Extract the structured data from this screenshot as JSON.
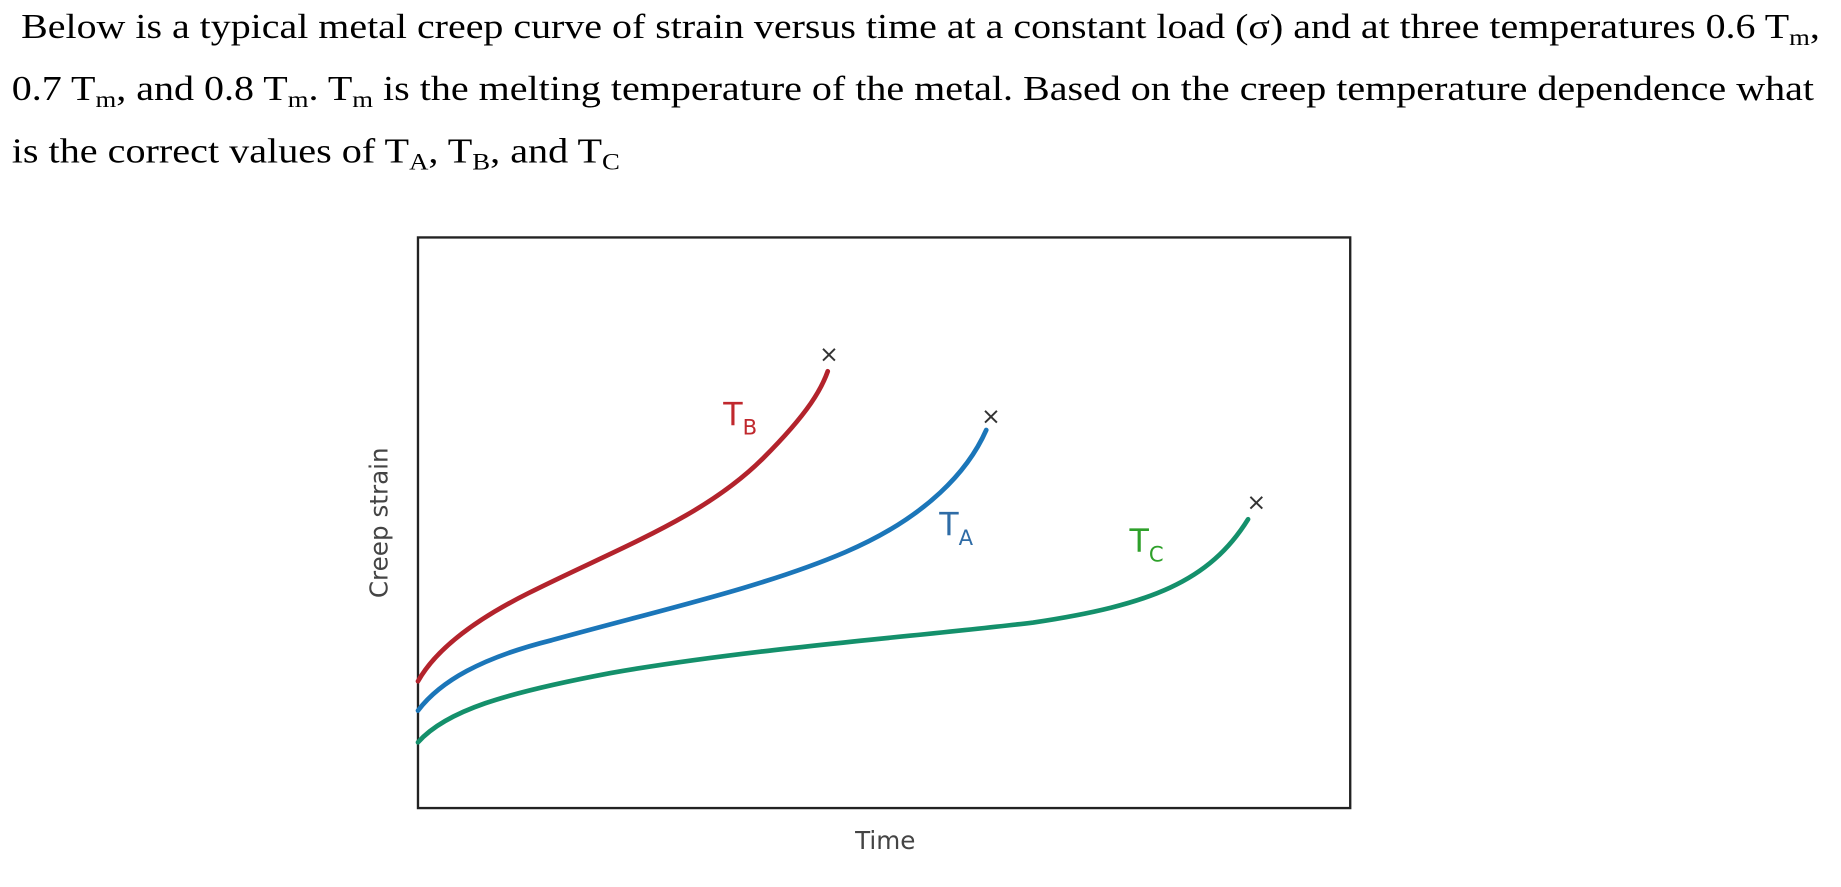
{
  "question": {
    "line1": [
      "Below is a typical metal creep curve of strain versus time at a constant load (σ) and at three temperatures 0.6 T",
      "m",
      ","
    ],
    "line2": [
      "0.7 T",
      "m",
      ", and 0.8 T",
      "m",
      ". T",
      "m",
      " is the melting temperature of the metal. Based on the creep temperature dependence what"
    ],
    "line3": [
      "is the correct values of T",
      "A",
      ", T",
      "B",
      ", and T",
      "C"
    ]
  },
  "diagram": {
    "ylabel": "Creep strain",
    "xlabel": "Time",
    "fracture_marker": "×",
    "curves": [
      {
        "label": "T",
        "sub": "B",
        "color": "#b3232c"
      },
      {
        "label": "T",
        "sub": "A",
        "color": "#1b76b9"
      },
      {
        "label": "T",
        "sub": "C",
        "color": "#14906b"
      }
    ],
    "label_colors": {
      "B": "#c0282d",
      "A": "#2f6ca6",
      "C": "#2ea02a"
    }
  }
}
